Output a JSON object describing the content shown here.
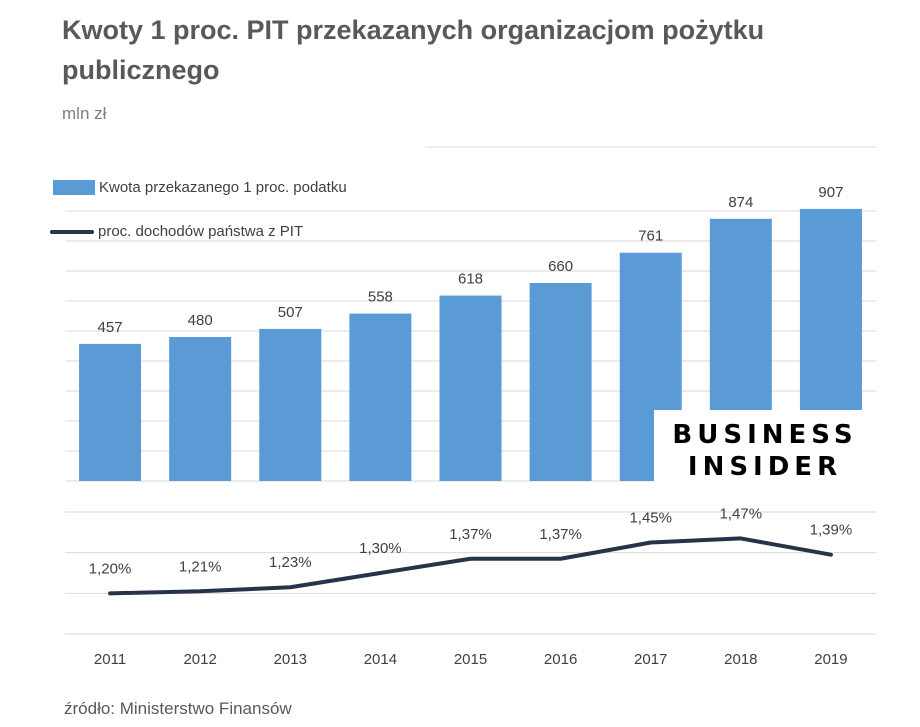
{
  "title": "Kwoty 1 proc. PIT przekazanych organizacjom pożytku publicznego",
  "unit": "mln zł",
  "source": "źródło: Ministerstwo Finansów",
  "logo": {
    "line1": "BUSINESS",
    "line2": "INSIDER"
  },
  "colors": {
    "bar": "#5b9bd5",
    "line": "#263348",
    "grid": "#d9d9d9"
  },
  "chart_data": [
    {
      "type": "bar",
      "categories": [
        "2011",
        "2012",
        "2013",
        "2014",
        "2015",
        "2016",
        "2017",
        "2018",
        "2019"
      ],
      "series": [
        {
          "name": "Kwota przekazanego 1 proc. podatku",
          "values": [
            457,
            480,
            507,
            558,
            618,
            660,
            761,
            874,
            907
          ],
          "labels": [
            "457",
            "480",
            "507",
            "558",
            "618",
            "660",
            "761",
            "874",
            "907"
          ]
        }
      ],
      "ylim": [
        0,
        1000
      ],
      "grid": true,
      "legend": "top-left"
    },
    {
      "type": "line",
      "categories": [
        "2011",
        "2012",
        "2013",
        "2014",
        "2015",
        "2016",
        "2017",
        "2018",
        "2019"
      ],
      "series": [
        {
          "name": "proc. dochodów państwa z PIT",
          "values": [
            1.2,
            1.21,
            1.23,
            1.3,
            1.37,
            1.37,
            1.45,
            1.47,
            1.39
          ],
          "labels": [
            "1,20%",
            "1,21%",
            "1,23%",
            "1,30%",
            "1,37%",
            "1,37%",
            "1,45%",
            "1,47%",
            "1,39%"
          ]
        }
      ],
      "ylim": [
        1.0,
        1.6
      ],
      "grid": true
    }
  ]
}
